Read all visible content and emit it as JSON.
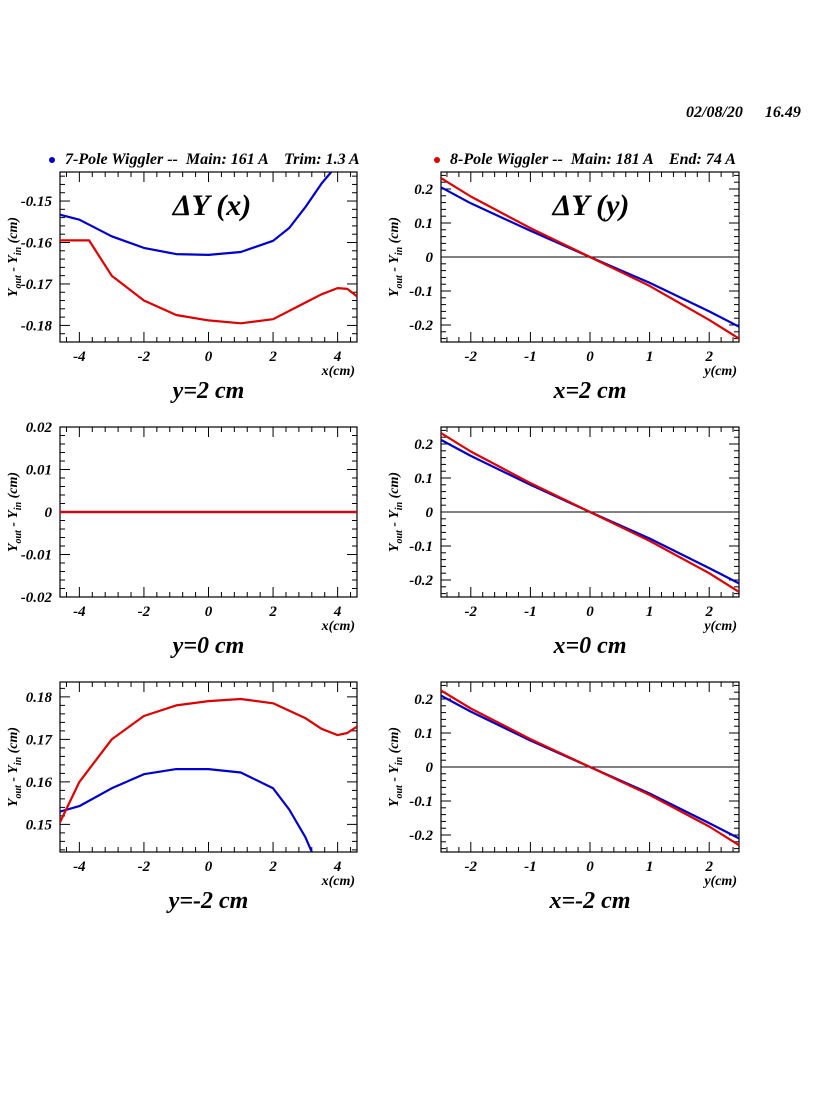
{
  "header": {
    "date": "02/08/20",
    "time": "16.49"
  },
  "legend": [
    {
      "label": "7-Pole Wiggler --  Main: 161 A    Trim: 1.3 A",
      "color": "#0000cc"
    },
    {
      "label": "8-Pole Wiggler --  Main: 181 A    End: 74 A",
      "color": "#dd0000"
    }
  ],
  "chart_data": [
    {
      "type": "line",
      "title": "ΔY (x)",
      "caption": "y=2 cm",
      "xlabel": "x(cm)",
      "ylabel": "Y_out - Y_in (cm)",
      "xlim": [
        -4.6,
        4.6
      ],
      "ylim": [
        -0.184,
        -0.143
      ],
      "xticks": [
        -4,
        -2,
        0,
        2,
        4
      ],
      "xticklabels": [
        "-4",
        "-2",
        "0",
        "2",
        "4"
      ],
      "yticks": [
        -0.15,
        -0.16,
        -0.17,
        -0.18
      ],
      "yticklabels": [
        "-0.15",
        "-0.16",
        "-0.17",
        "-0.18"
      ],
      "zero_line": false,
      "series": [
        {
          "name": "7-Pole",
          "color": "#0000cc",
          "x": [
            -4.6,
            -4.0,
            -3.0,
            -2.0,
            -1.0,
            0.0,
            1.0,
            2.0,
            2.5,
            3.0,
            3.5,
            3.8
          ],
          "y": [
            -0.1533,
            -0.1545,
            -0.1585,
            -0.1613,
            -0.1628,
            -0.163,
            -0.1623,
            -0.1596,
            -0.1565,
            -0.1515,
            -0.1458,
            -0.143
          ]
        },
        {
          "name": "8-Pole",
          "color": "#dd0000",
          "x": [
            -4.6,
            -3.7,
            -3.0,
            -2.0,
            -1.0,
            0.0,
            1.0,
            2.0,
            3.0,
            3.5,
            4.0,
            4.3,
            4.6
          ],
          "y": [
            -0.1595,
            -0.1595,
            -0.168,
            -0.174,
            -0.1775,
            -0.1788,
            -0.1795,
            -0.1785,
            -0.1745,
            -0.1725,
            -0.171,
            -0.1712,
            -0.173
          ]
        }
      ]
    },
    {
      "type": "line",
      "title": "ΔY (y)",
      "caption": "x=2 cm",
      "xlabel": "y(cm)",
      "ylabel": "Y_out - Y_in (cm)",
      "xlim": [
        -2.5,
        2.5
      ],
      "ylim": [
        -0.25,
        0.25
      ],
      "xticks": [
        -2,
        -1,
        0,
        1,
        2
      ],
      "xticklabels": [
        "-2",
        "-1",
        "0",
        "1",
        "2"
      ],
      "yticks": [
        0.2,
        0.1,
        0,
        -0.1,
        -0.2
      ],
      "yticklabels": [
        "0.2",
        "0.1",
        "0",
        "-0.1",
        "-0.2"
      ],
      "zero_line": true,
      "series": [
        {
          "name": "7-Pole",
          "color": "#0000cc",
          "x": [
            -2.5,
            -2.0,
            -1.0,
            0.0,
            1.0,
            2.0,
            2.5
          ],
          "y": [
            0.205,
            0.158,
            0.077,
            0.0,
            -0.076,
            -0.16,
            -0.205
          ]
        },
        {
          "name": "8-Pole",
          "color": "#dd0000",
          "x": [
            -2.5,
            -2.0,
            -1.0,
            0.0,
            1.0,
            2.0,
            2.5
          ],
          "y": [
            0.232,
            0.178,
            0.085,
            0.0,
            -0.085,
            -0.185,
            -0.24
          ]
        }
      ]
    },
    {
      "type": "line",
      "title": "",
      "caption": "y=0 cm",
      "xlabel": "x(cm)",
      "ylabel": "Y_out - Y_in (cm)",
      "xlim": [
        -4.6,
        4.6
      ],
      "ylim": [
        -0.02,
        0.02
      ],
      "xticks": [
        -4,
        -2,
        0,
        2,
        4
      ],
      "xticklabels": [
        "-4",
        "-2",
        "0",
        "2",
        "4"
      ],
      "yticks": [
        0.02,
        0.01,
        0,
        -0.01,
        -0.02
      ],
      "yticklabels": [
        "0.02",
        "0.01",
        "0",
        "-0.01",
        "-0.02"
      ],
      "zero_line": false,
      "series": [
        {
          "name": "7-Pole",
          "color": "#0000cc",
          "x": [
            -4.6,
            4.6
          ],
          "y": [
            0.0,
            0.0
          ]
        },
        {
          "name": "8-Pole",
          "color": "#dd0000",
          "x": [
            -4.6,
            4.6
          ],
          "y": [
            0.0,
            0.0
          ]
        }
      ]
    },
    {
      "type": "line",
      "title": "",
      "caption": "x=0 cm",
      "xlabel": "y(cm)",
      "ylabel": "Y_out - Y_in (cm)",
      "xlim": [
        -2.5,
        2.5
      ],
      "ylim": [
        -0.25,
        0.25
      ],
      "xticks": [
        -2,
        -1,
        0,
        1,
        2
      ],
      "xticklabels": [
        "-2",
        "-1",
        "0",
        "1",
        "2"
      ],
      "yticks": [
        0.2,
        0.1,
        0,
        -0.1,
        -0.2
      ],
      "yticklabels": [
        "0.2",
        "0.1",
        "0",
        "-0.1",
        "-0.2"
      ],
      "zero_line": true,
      "series": [
        {
          "name": "7-Pole",
          "color": "#0000cc",
          "x": [
            -2.5,
            -2.0,
            -1.0,
            0.0,
            1.0,
            2.0,
            2.5
          ],
          "y": [
            0.212,
            0.165,
            0.08,
            0.0,
            -0.078,
            -0.165,
            -0.21
          ]
        },
        {
          "name": "8-Pole",
          "color": "#dd0000",
          "x": [
            -2.5,
            -2.0,
            -1.0,
            0.0,
            1.0,
            2.0,
            2.5
          ],
          "y": [
            0.232,
            0.178,
            0.085,
            0.0,
            -0.085,
            -0.18,
            -0.235
          ]
        }
      ]
    },
    {
      "type": "line",
      "title": "",
      "caption": "y=-2 cm",
      "xlabel": "x(cm)",
      "ylabel": "Y_out - Y_in (cm)",
      "xlim": [
        -4.6,
        4.6
      ],
      "ylim": [
        0.1435,
        0.1835
      ],
      "xticks": [
        -4,
        -2,
        0,
        2,
        4
      ],
      "xticklabels": [
        "-4",
        "-2",
        "0",
        "2",
        "4"
      ],
      "yticks": [
        0.18,
        0.17,
        0.16,
        0.15
      ],
      "yticklabels": [
        "0.18",
        "0.17",
        "0.16",
        "0.15"
      ],
      "zero_line": false,
      "series": [
        {
          "name": "7-Pole",
          "color": "#0000cc",
          "x": [
            -4.6,
            -4.0,
            -3.0,
            -2.0,
            -1.0,
            0.0,
            1.0,
            2.0,
            2.5,
            3.0,
            3.2
          ],
          "y": [
            0.153,
            0.1543,
            0.1585,
            0.1618,
            0.163,
            0.163,
            0.1622,
            0.1585,
            0.1535,
            0.147,
            0.1435
          ]
        },
        {
          "name": "8-Pole",
          "color": "#dd0000",
          "x": [
            -4.6,
            -4.0,
            -3.0,
            -2.0,
            -1.0,
            0.0,
            1.0,
            2.0,
            3.0,
            3.5,
            4.0,
            4.3,
            4.6
          ],
          "y": [
            0.1505,
            0.16,
            0.17,
            0.1755,
            0.178,
            0.179,
            0.1795,
            0.1785,
            0.175,
            0.1725,
            0.171,
            0.1715,
            0.173
          ]
        }
      ]
    },
    {
      "type": "line",
      "title": "",
      "caption": "x=-2 cm",
      "xlabel": "y(cm)",
      "ylabel": "Y_out - Y_in (cm)",
      "xlim": [
        -2.5,
        2.5
      ],
      "ylim": [
        -0.25,
        0.25
      ],
      "xticks": [
        -2,
        -1,
        0,
        1,
        2
      ],
      "xticklabels": [
        "-2",
        "-1",
        "0",
        "1",
        "2"
      ],
      "yticks": [
        0.2,
        0.1,
        0,
        -0.1,
        -0.2
      ],
      "yticklabels": [
        "0.2",
        "0.1",
        "0",
        "-0.1",
        "-0.2"
      ],
      "zero_line": true,
      "series": [
        {
          "name": "7-Pole",
          "color": "#0000cc",
          "x": [
            -2.5,
            -2.0,
            -1.0,
            0.0,
            1.0,
            2.0,
            2.5
          ],
          "y": [
            0.21,
            0.163,
            0.078,
            0.0,
            -0.078,
            -0.165,
            -0.21
          ]
        },
        {
          "name": "8-Pole",
          "color": "#dd0000",
          "x": [
            -2.5,
            -2.0,
            -1.0,
            0.0,
            1.0,
            2.0,
            2.5
          ],
          "y": [
            0.225,
            0.172,
            0.082,
            0.0,
            -0.082,
            -0.175,
            -0.23
          ]
        }
      ]
    }
  ]
}
